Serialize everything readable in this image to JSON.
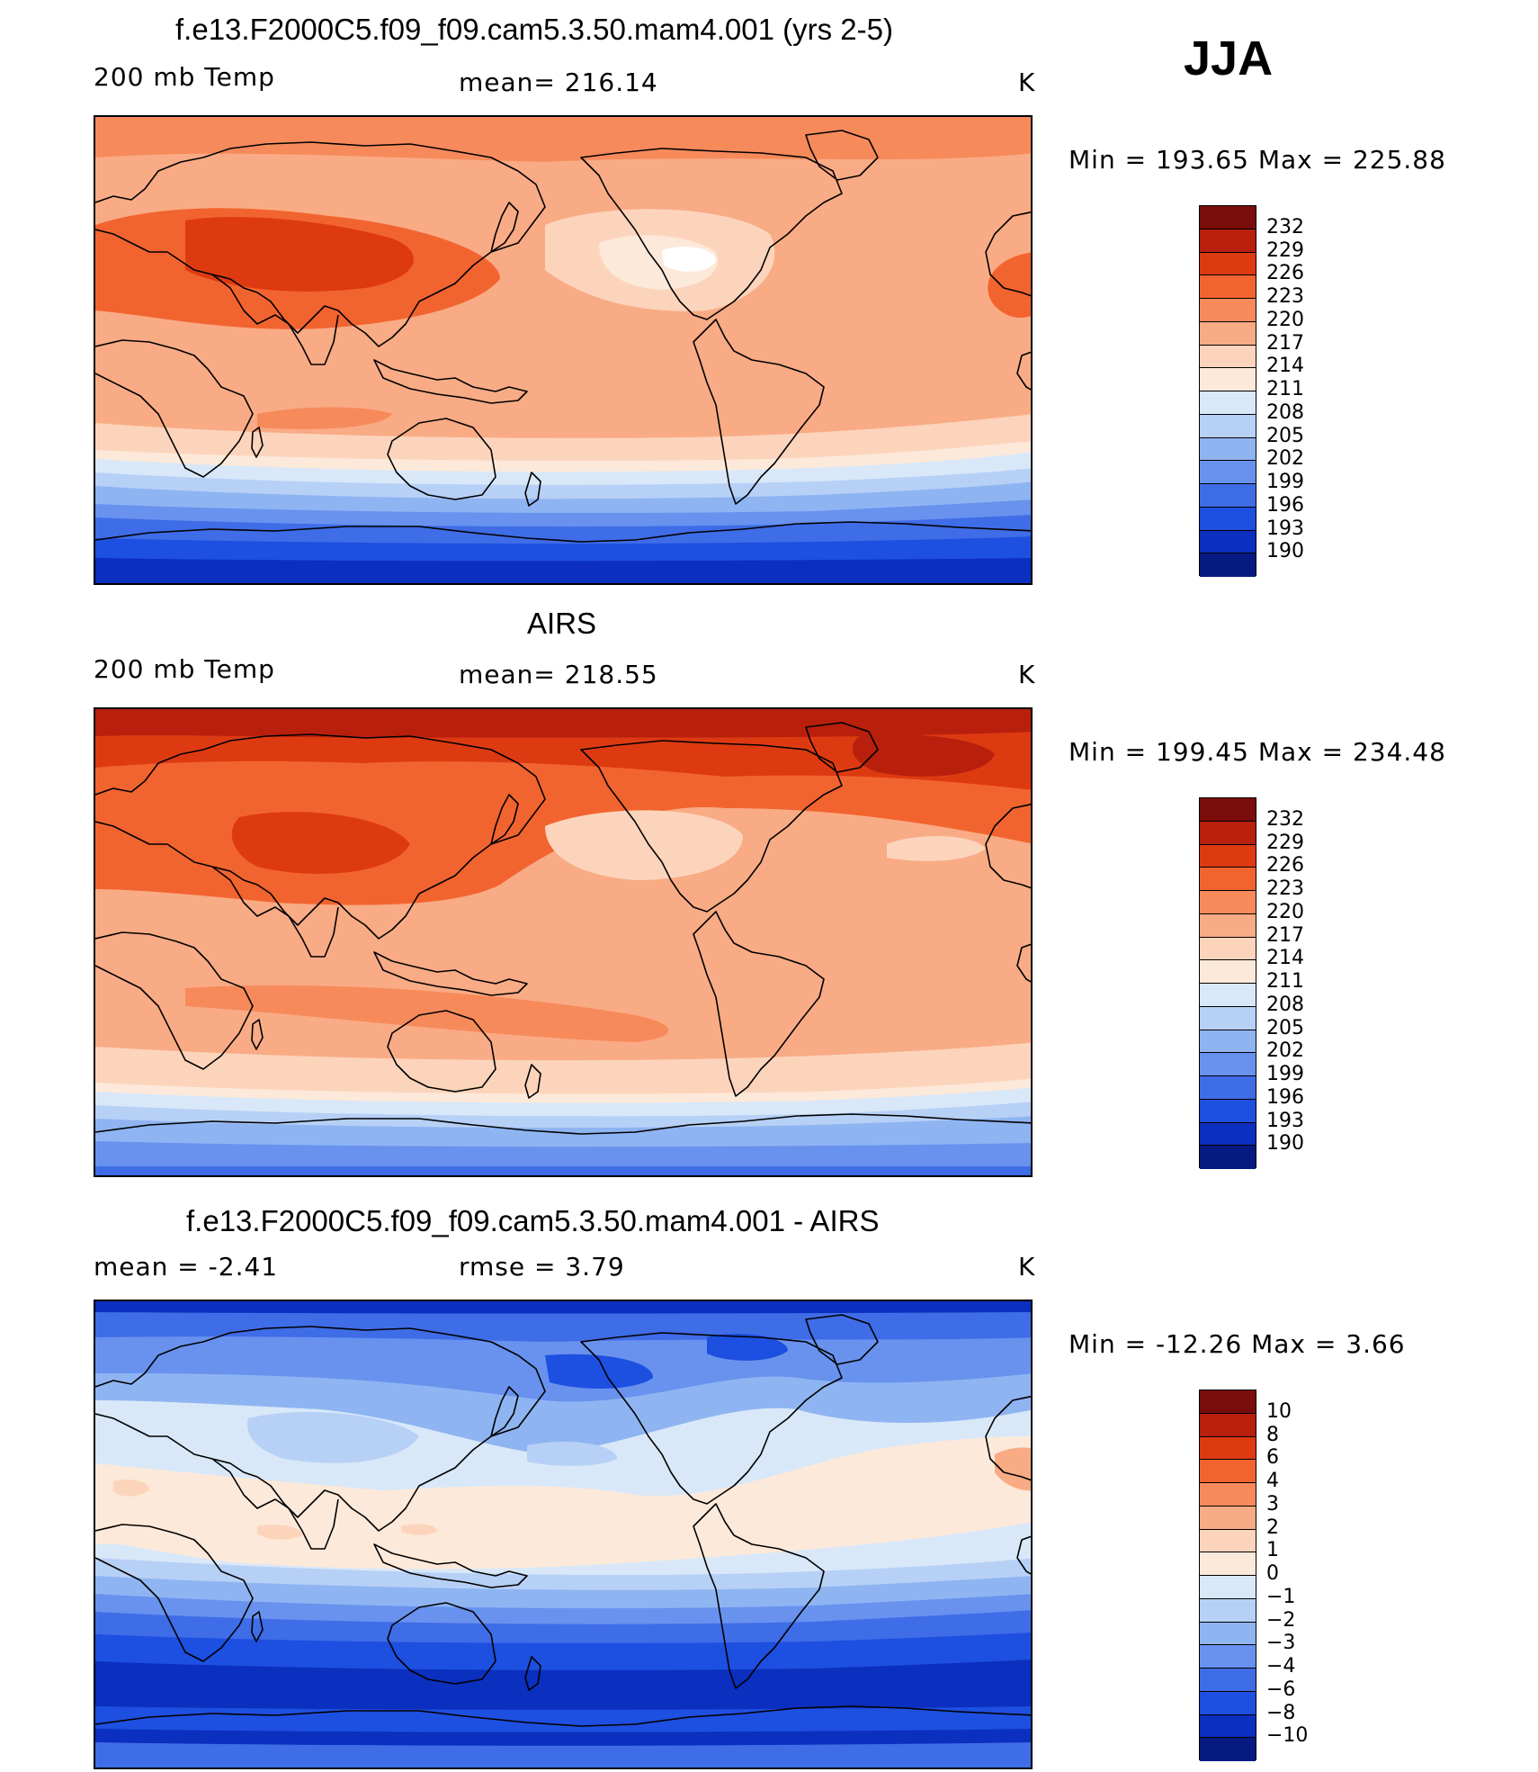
{
  "season": "JJA",
  "panels": [
    {
      "title": "f.e13.F2000C5.f09_f09.cam5.3.50.mam4.001 (yrs 2-5)",
      "left_label": "200 mb Temp",
      "center_label": "mean= 216.14",
      "units": "K",
      "minmax": "Min = 193.65 Max = 225.88"
    },
    {
      "title": "AIRS",
      "left_label": "200 mb Temp",
      "center_label": "mean= 218.55",
      "units": "K",
      "minmax": "Min = 199.45 Max = 234.48"
    },
    {
      "title": "f.e13.F2000C5.f09_f09.cam5.3.50.mam4.001 - AIRS",
      "left_label": "mean = -2.41",
      "center_label": "rmse = 3.79",
      "units": "K",
      "minmax": "Min = -12.26 Max = 3.66"
    }
  ],
  "colorbars": {
    "temperature": {
      "labels": [
        "232",
        "229",
        "226",
        "223",
        "220",
        "217",
        "214",
        "211",
        "208",
        "205",
        "202",
        "199",
        "196",
        "193",
        "190"
      ],
      "colors": [
        "#7a0c0c",
        "#b8200d",
        "#de3a12",
        "#f2642f",
        "#f78a5b",
        "#f9ab85",
        "#fcd4bc",
        "#fde9da",
        "#d8e8f8",
        "#b7d0f6",
        "#8fb4f2",
        "#6892ee",
        "#3f6ce7",
        "#1d4fe0",
        "#0b2fbe",
        "#061a82"
      ]
    },
    "difference": {
      "labels": [
        "10",
        "8",
        "6",
        "4",
        "3",
        "2",
        "1",
        "0",
        "−1",
        "−2",
        "−3",
        "−4",
        "−6",
        "−8",
        "−10"
      ],
      "colors": [
        "#7a0c0c",
        "#b8200d",
        "#de3a12",
        "#f2642f",
        "#f78a5b",
        "#f9ab85",
        "#fcd4bc",
        "#fde9da",
        "#d8e8f8",
        "#b7d0f6",
        "#8fb4f2",
        "#6892ee",
        "#3f6ce7",
        "#1d4fe0",
        "#0b2fbe",
        "#061a82"
      ]
    }
  }
}
